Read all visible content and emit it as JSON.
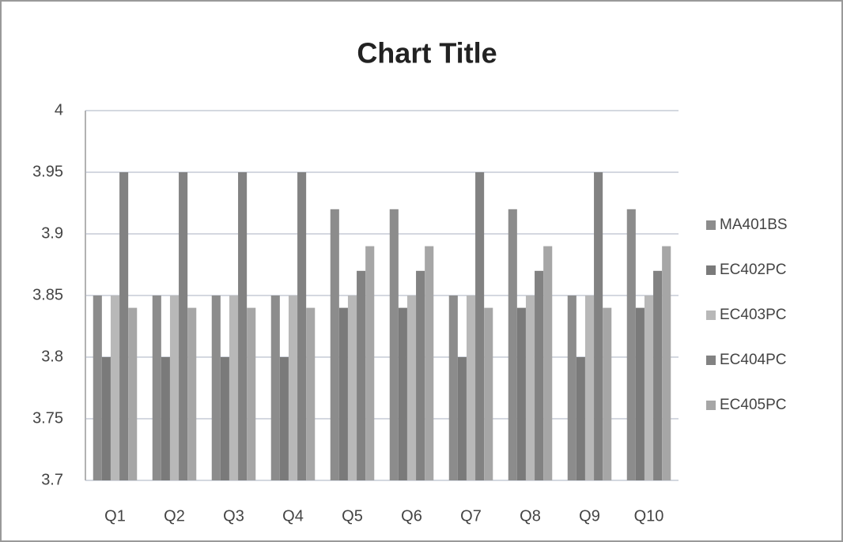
{
  "chart_data": {
    "type": "bar",
    "title": "Chart Title",
    "categories": [
      "Q1",
      "Q2",
      "Q3",
      "Q4",
      "Q5",
      "Q6",
      "Q7",
      "Q8",
      "Q9",
      "Q10"
    ],
    "series": [
      {
        "name": "MA401BS",
        "color": "#8c8c8c",
        "values": [
          3.85,
          3.85,
          3.85,
          3.85,
          3.92,
          3.92,
          3.85,
          3.92,
          3.85,
          3.92
        ]
      },
      {
        "name": "EC402PC",
        "color": "#7a7a7a",
        "values": [
          3.8,
          3.8,
          3.8,
          3.8,
          3.84,
          3.84,
          3.8,
          3.84,
          3.8,
          3.84
        ]
      },
      {
        "name": "EC403PC",
        "color": "#b8b8b8",
        "values": [
          3.85,
          3.85,
          3.85,
          3.85,
          3.85,
          3.85,
          3.85,
          3.85,
          3.85,
          3.85
        ]
      },
      {
        "name": "EC404PC",
        "color": "#828282",
        "values": [
          3.95,
          3.95,
          3.95,
          3.95,
          3.87,
          3.87,
          3.95,
          3.87,
          3.95,
          3.87
        ]
      },
      {
        "name": "EC405PC",
        "color": "#a6a6a6",
        "values": [
          3.84,
          3.84,
          3.84,
          3.84,
          3.89,
          3.89,
          3.84,
          3.89,
          3.84,
          3.89
        ]
      }
    ],
    "ylim": [
      3.7,
      4
    ],
    "yticks": [
      3.7,
      3.75,
      3.8,
      3.85,
      3.9,
      3.95,
      4
    ],
    "grid": true,
    "legend": "right"
  }
}
